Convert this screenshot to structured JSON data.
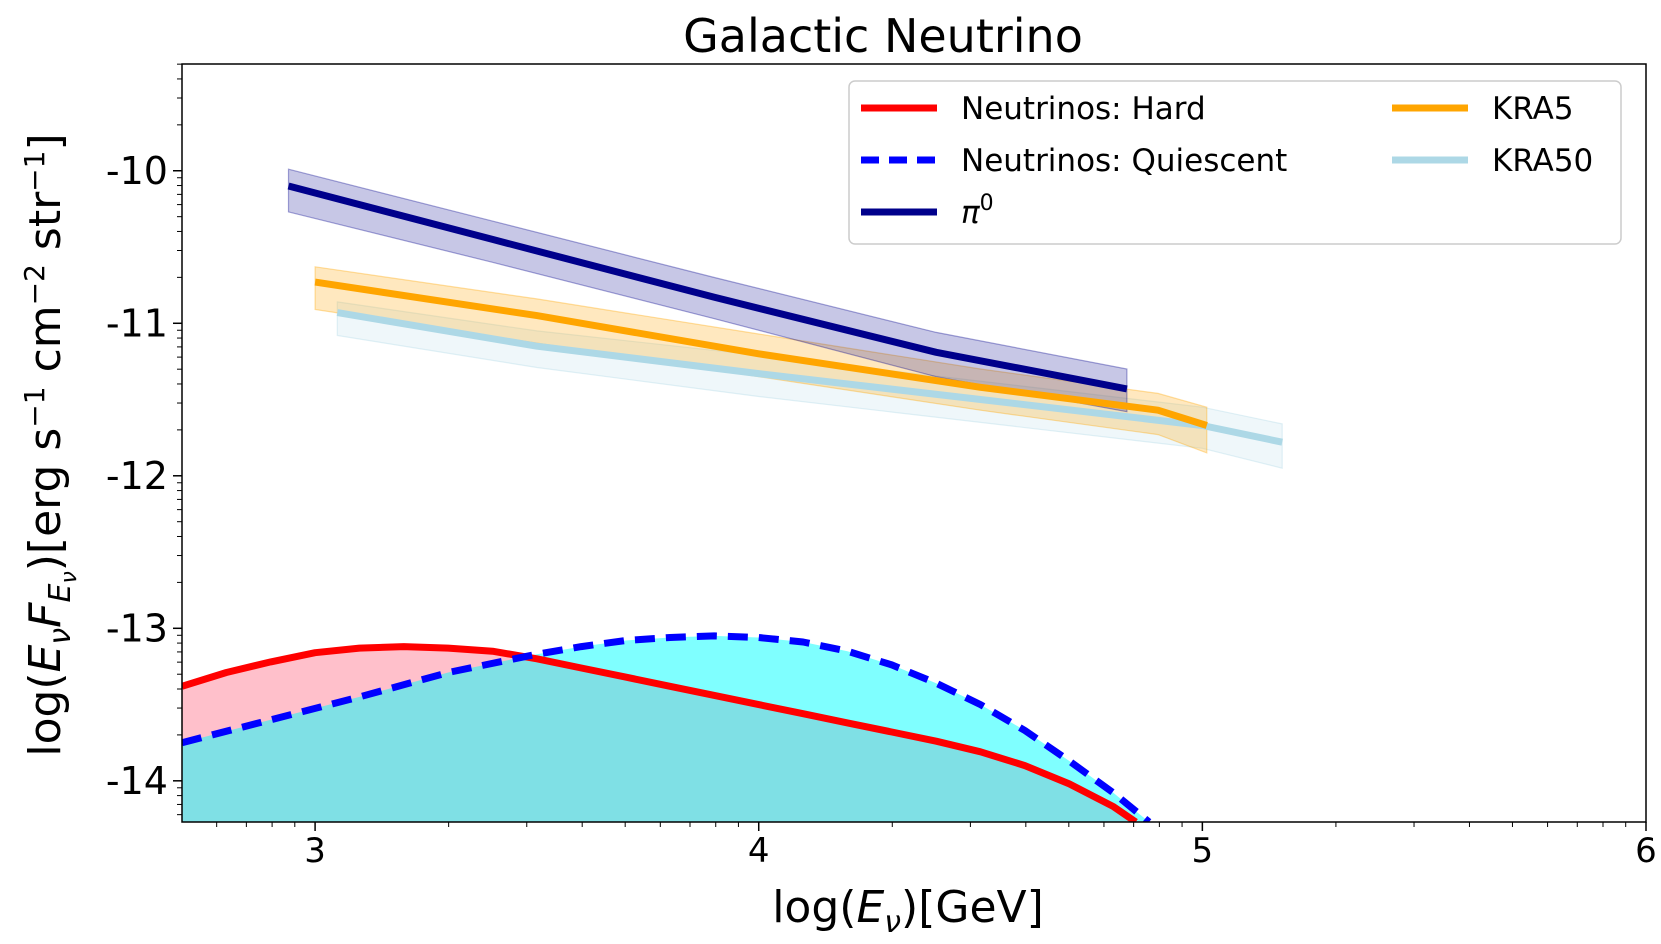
{
  "chart_data": {
    "type": "line",
    "title": "Galactic Neutrino",
    "xlabel": "log(E_ν)[GeV]",
    "ylabel": "log(E_νF_E_ν)[erg s⁻¹ cm⁻² str⁻¹]",
    "xlim": [
      2.7,
      6.0
    ],
    "ylim": [
      -14.27,
      -9.3
    ],
    "xticks": [
      {
        "value": 3,
        "label": "3"
      },
      {
        "value": 4,
        "label": "4"
      },
      {
        "value": 5,
        "label": "5"
      },
      {
        "value": 6,
        "label": "6"
      }
    ],
    "yticks": [
      {
        "value": -10,
        "label": "-10"
      },
      {
        "value": -11,
        "label": "-11"
      },
      {
        "value": -12,
        "label": "-12"
      },
      {
        "value": -13,
        "label": "-13"
      },
      {
        "value": -14,
        "label": "-14"
      }
    ],
    "series": [
      {
        "name": "π⁰",
        "legend_label": "π",
        "legend_sup": "0",
        "color": "#00008b",
        "style": "solid",
        "x": [
          2.94,
          3.4,
          3.9,
          4.4,
          4.83
        ],
        "y": [
          -10.1,
          -10.45,
          -10.83,
          -11.19,
          -11.43
        ],
        "band_upper": [
          -9.99,
          -10.33,
          -10.7,
          -11.06,
          -11.3
        ],
        "band_lower": [
          -10.27,
          -10.6,
          -10.97,
          -11.35,
          -11.58
        ]
      },
      {
        "name": "KRA5",
        "legend_label": "KRA5",
        "color": "#ffa500",
        "style": "solid",
        "x": [
          3.0,
          3.5,
          4.0,
          4.5,
          4.9,
          5.01
        ],
        "y": [
          -10.73,
          -10.95,
          -11.2,
          -11.42,
          -11.57,
          -11.67
        ],
        "band_upper": [
          -10.63,
          -10.84,
          -11.07,
          -11.3,
          -11.46,
          -11.55
        ],
        "band_lower": [
          -10.91,
          -11.13,
          -11.35,
          -11.57,
          -11.73,
          -11.85
        ]
      },
      {
        "name": "KRA50",
        "legend_label": "KRA50",
        "color": "#add8e6",
        "style": "solid",
        "x": [
          3.05,
          3.5,
          4.0,
          4.5,
          5.0,
          5.18
        ],
        "y": [
          -10.93,
          -11.15,
          -11.33,
          -11.5,
          -11.67,
          -11.78
        ],
        "band_upper": [
          -10.86,
          -11.05,
          -11.21,
          -11.38,
          -11.55,
          -11.66
        ],
        "band_lower": [
          -11.08,
          -11.29,
          -11.48,
          -11.65,
          -11.82,
          -11.95
        ]
      },
      {
        "name": "Neutrinos: Hard",
        "legend_label": "Neutrinos: Hard",
        "color": "#ff0000",
        "style": "solid",
        "fill": "#ffc0cb",
        "x": [
          2.7,
          2.8,
          2.9,
          3.0,
          3.1,
          3.2,
          3.3,
          3.4,
          3.5,
          3.6,
          3.7,
          3.8,
          3.9,
          4.0,
          4.1,
          4.2,
          4.3,
          4.4,
          4.5,
          4.6,
          4.7,
          4.8,
          4.85
        ],
        "y": [
          -13.38,
          -13.29,
          -13.22,
          -13.16,
          -13.13,
          -13.12,
          -13.13,
          -13.15,
          -13.2,
          -13.26,
          -13.32,
          -13.38,
          -13.44,
          -13.5,
          -13.56,
          -13.62,
          -13.68,
          -13.74,
          -13.81,
          -13.9,
          -14.02,
          -14.17,
          -14.27
        ]
      },
      {
        "name": "Neutrinos: Quiescent",
        "legend_label": "Neutrinos: Quiescent",
        "color": "#0000ff",
        "style": "dashed",
        "fill": "#00ffff",
        "x": [
          2.7,
          2.9,
          3.1,
          3.3,
          3.5,
          3.6,
          3.7,
          3.8,
          3.9,
          4.0,
          4.1,
          4.2,
          4.3,
          4.4,
          4.5,
          4.6,
          4.7,
          4.8,
          4.88
        ],
        "y": [
          -13.75,
          -13.6,
          -13.45,
          -13.29,
          -13.17,
          -13.12,
          -13.08,
          -13.06,
          -13.05,
          -13.06,
          -13.09,
          -13.15,
          -13.24,
          -13.36,
          -13.5,
          -13.67,
          -13.87,
          -14.08,
          -14.27
        ]
      }
    ],
    "legend_position": "top-right"
  }
}
